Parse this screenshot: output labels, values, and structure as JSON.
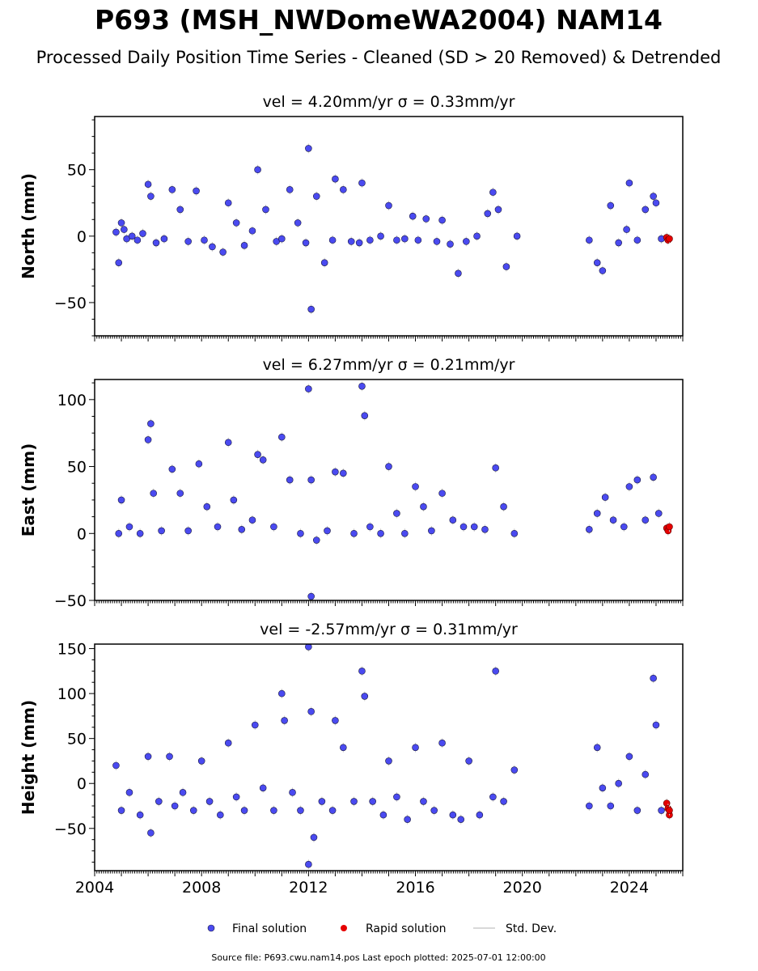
{
  "figure": {
    "title": "P693 (MSH_NWDomeWA2004) NAM14",
    "subtitle": "Processed Daily Position Time Series - Cleaned (SD > 20 Removed) & Detrended",
    "source_note": "Source file: P693.cwu.nam14.pos  Last epoch plotted: 2025-07-01 12:00:00"
  },
  "legend": {
    "final": "Final solution",
    "rapid": "Rapid solution",
    "std": "Std. Dev."
  },
  "colors": {
    "final": "#4a4af0",
    "final_edge": "#1a1a40",
    "rapid": "#e60000",
    "std": "#cccccc",
    "axis": "#000000"
  },
  "chart_data": [
    {
      "type": "scatter",
      "title": "vel = 4.20mm/yr   σ = 0.33mm/yr",
      "ylabel": "North (mm)",
      "xlim": [
        2004.0,
        2026.0
      ],
      "ylim": [
        -75,
        90
      ],
      "yticks": [
        -50,
        0,
        50
      ],
      "ytick_labels": [
        "−50",
        "0",
        "50"
      ],
      "series": [
        {
          "name": "Final solution",
          "x": [
            2004.8,
            2004.9,
            2005.0,
            2005.1,
            2005.2,
            2005.4,
            2005.6,
            2005.8,
            2006.0,
            2006.1,
            2006.3,
            2006.6,
            2006.9,
            2007.2,
            2007.5,
            2007.8,
            2008.1,
            2008.4,
            2008.8,
            2009.0,
            2009.3,
            2009.6,
            2009.9,
            2010.1,
            2010.4,
            2010.8,
            2011.0,
            2011.3,
            2011.6,
            2011.9,
            2012.0,
            2012.1,
            2012.3,
            2012.6,
            2012.9,
            2013.0,
            2013.3,
            2013.6,
            2013.9,
            2014.0,
            2014.3,
            2014.7,
            2015.0,
            2015.3,
            2015.6,
            2015.9,
            2016.1,
            2016.4,
            2016.8,
            2017.0,
            2017.3,
            2017.6,
            2017.9,
            2018.3,
            2018.7,
            2018.9,
            2019.1,
            2019.4,
            2019.8,
            2022.5,
            2022.8,
            2023.0,
            2023.3,
            2023.6,
            2023.9,
            2024.0,
            2024.3,
            2024.6,
            2024.9,
            2025.0,
            2025.2
          ],
          "y": [
            3,
            -20,
            10,
            5,
            -2,
            0,
            -3,
            2,
            39,
            30,
            -5,
            -2,
            35,
            20,
            -4,
            34,
            -3,
            -8,
            -12,
            25,
            10,
            -7,
            4,
            50,
            20,
            -4,
            -2,
            35,
            10,
            -5,
            66,
            -55,
            30,
            -20,
            -3,
            43,
            35,
            -4,
            -5,
            40,
            -3,
            0,
            23,
            -3,
            -2,
            15,
            -3,
            13,
            -4,
            12,
            -6,
            -28,
            -4,
            0,
            17,
            33,
            20,
            -23,
            0,
            -3,
            -20,
            -26,
            23,
            -5,
            5,
            40,
            -3,
            20,
            30,
            25,
            -2
          ]
        },
        {
          "name": "Rapid solution",
          "x": [
            2025.4,
            2025.45,
            2025.5
          ],
          "y": [
            -1,
            -3,
            -2
          ]
        }
      ]
    },
    {
      "type": "scatter",
      "title": "vel = 6.27mm/yr   σ = 0.21mm/yr",
      "ylabel": "East (mm)",
      "xlim": [
        2004.0,
        2026.0
      ],
      "ylim": [
        -50,
        115
      ],
      "yticks": [
        -50,
        0,
        50,
        100
      ],
      "ytick_labels": [
        "−50",
        "0",
        "50",
        "100"
      ],
      "series": [
        {
          "name": "Final solution",
          "x": [
            2004.9,
            2005.0,
            2005.3,
            2005.7,
            2006.0,
            2006.1,
            2006.2,
            2006.5,
            2006.9,
            2007.2,
            2007.5,
            2007.9,
            2008.2,
            2008.6,
            2009.0,
            2009.2,
            2009.5,
            2009.9,
            2010.1,
            2010.3,
            2010.7,
            2011.0,
            2011.3,
            2011.7,
            2012.0,
            2012.1,
            2012.1,
            2012.3,
            2012.7,
            2013.0,
            2013.3,
            2013.7,
            2014.0,
            2014.1,
            2014.3,
            2014.7,
            2015.0,
            2015.3,
            2015.6,
            2016.0,
            2016.3,
            2016.6,
            2017.0,
            2017.4,
            2017.8,
            2018.2,
            2018.6,
            2019.0,
            2019.3,
            2019.7,
            2022.5,
            2022.8,
            2023.1,
            2023.4,
            2023.8,
            2024.0,
            2024.3,
            2024.6,
            2024.9,
            2025.1
          ],
          "y": [
            0,
            25,
            5,
            0,
            70,
            82,
            30,
            2,
            48,
            30,
            2,
            52,
            20,
            5,
            68,
            25,
            3,
            10,
            59,
            55,
            5,
            72,
            40,
            0,
            108,
            -47,
            40,
            -5,
            2,
            46,
            45,
            0,
            110,
            88,
            5,
            0,
            50,
            15,
            0,
            35,
            20,
            2,
            30,
            10,
            5,
            5,
            3,
            49,
            20,
            0,
            3,
            15,
            27,
            10,
            5,
            35,
            40,
            10,
            42,
            15
          ]
        },
        {
          "name": "Rapid solution",
          "x": [
            2025.4,
            2025.45,
            2025.5
          ],
          "y": [
            4,
            2,
            5
          ]
        }
      ]
    },
    {
      "type": "scatter",
      "title": "vel = -2.57mm/yr   σ = 0.31mm/yr",
      "ylabel": "Height (mm)",
      "xlim": [
        2004.0,
        2026.0
      ],
      "ylim": [
        -97,
        155
      ],
      "yticks": [
        -50,
        0,
        50,
        100,
        150
      ],
      "ytick_labels": [
        "−50",
        "0",
        "50",
        "100",
        "150"
      ],
      "xticks": [
        2004,
        2008,
        2012,
        2016,
        2020,
        2024
      ],
      "xtick_labels": [
        "2004",
        "2008",
        "2012",
        "2016",
        "2020",
        "2024"
      ],
      "series": [
        {
          "name": "Final solution",
          "x": [
            2004.8,
            2005.0,
            2005.3,
            2005.7,
            2006.0,
            2006.1,
            2006.4,
            2006.8,
            2007.0,
            2007.3,
            2007.7,
            2008.0,
            2008.3,
            2008.7,
            2009.0,
            2009.3,
            2009.6,
            2010.0,
            2010.3,
            2010.7,
            2011.0,
            2011.1,
            2011.4,
            2011.7,
            2012.0,
            2012.0,
            2012.1,
            2012.2,
            2012.5,
            2012.9,
            2013.0,
            2013.3,
            2013.7,
            2014.0,
            2014.1,
            2014.4,
            2014.8,
            2015.0,
            2015.3,
            2015.7,
            2016.0,
            2016.3,
            2016.7,
            2017.0,
            2017.4,
            2017.7,
            2018.0,
            2018.4,
            2018.9,
            2019.0,
            2019.3,
            2019.7,
            2022.5,
            2022.8,
            2023.0,
            2023.3,
            2023.6,
            2024.0,
            2024.3,
            2024.6,
            2024.9,
            2025.0,
            2025.2
          ],
          "y": [
            20,
            -30,
            -10,
            -35,
            30,
            -55,
            -20,
            30,
            -25,
            -10,
            -30,
            25,
            -20,
            -35,
            45,
            -15,
            -30,
            65,
            -5,
            -30,
            100,
            70,
            -10,
            -30,
            152,
            -90,
            80,
            -60,
            -20,
            -30,
            70,
            40,
            -20,
            125,
            97,
            -20,
            -35,
            25,
            -15,
            -40,
            40,
            -20,
            -30,
            45,
            -35,
            -40,
            25,
            -35,
            -15,
            125,
            -20,
            15,
            -25,
            40,
            -5,
            -25,
            0,
            30,
            -30,
            10,
            117,
            65,
            -30
          ]
        },
        {
          "name": "Rapid solution",
          "x": [
            2025.4,
            2025.45,
            2025.5,
            2025.5
          ],
          "y": [
            -22,
            -28,
            -35,
            -30
          ]
        }
      ]
    }
  ]
}
